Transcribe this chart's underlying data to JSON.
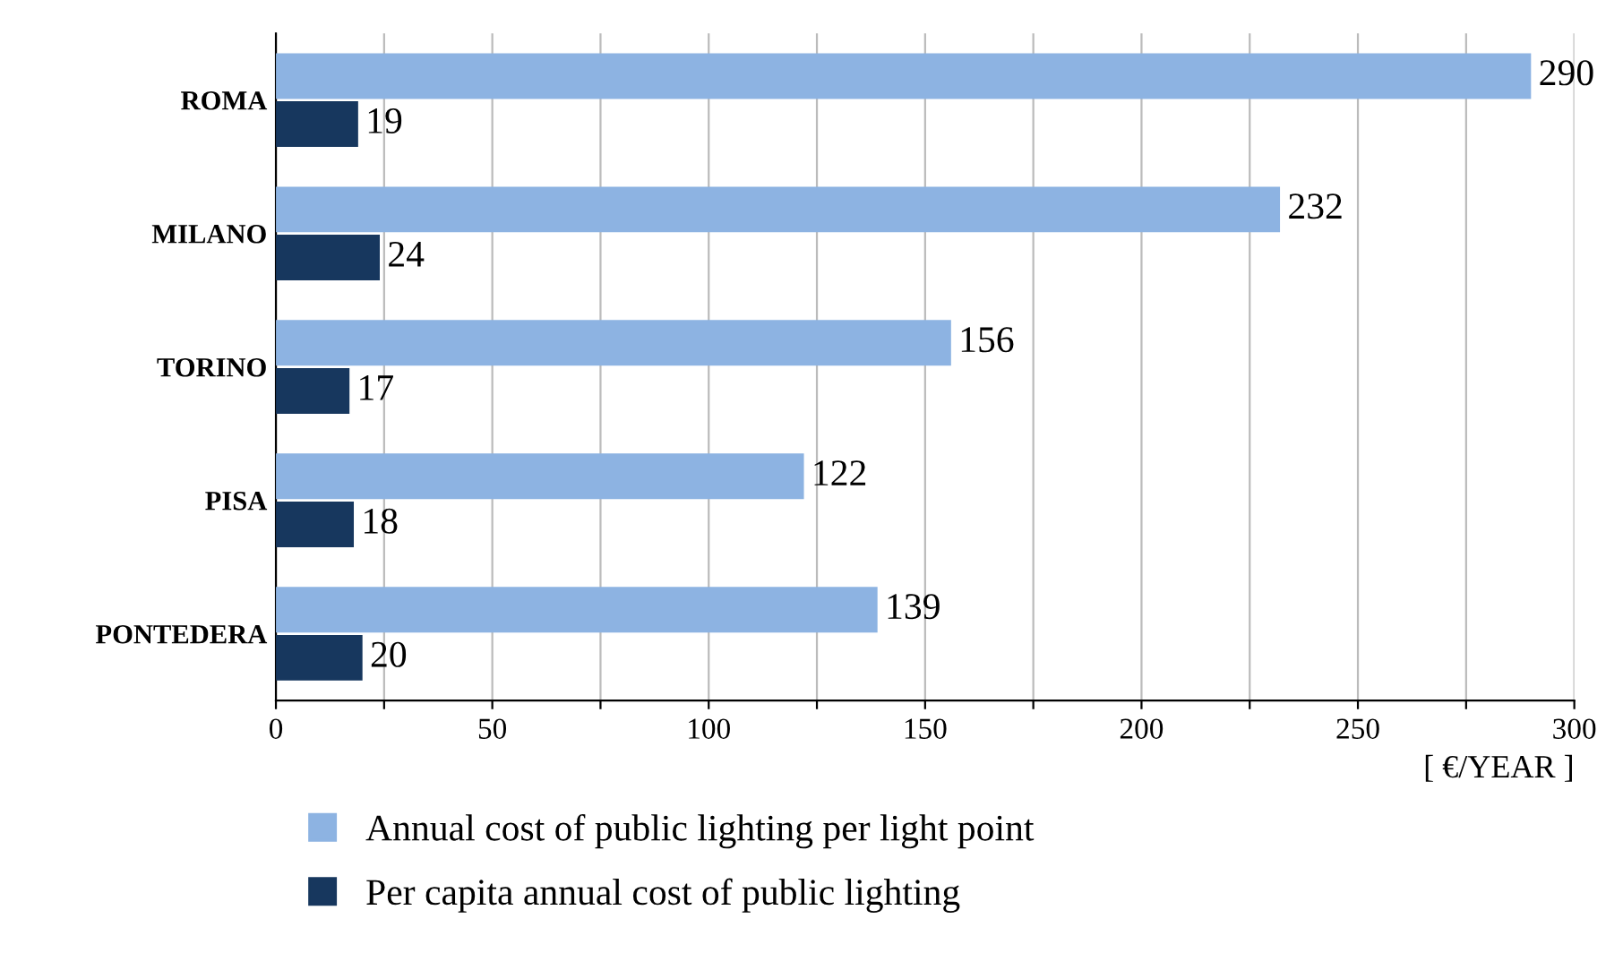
{
  "chart_data": {
    "type": "bar",
    "orientation": "horizontal",
    "categories": [
      "ROMA",
      "MILANO",
      "TORINO",
      "PISA",
      "PONTEDERA"
    ],
    "series": [
      {
        "name": "Annual cost of public lighting per light point",
        "color": "#8db3e2",
        "values": [
          290,
          232,
          156,
          122,
          139
        ]
      },
      {
        "name": "Per capita annual cost of public lighting",
        "color": "#17375e",
        "values": [
          19,
          24,
          17,
          18,
          20
        ]
      }
    ],
    "xlim": [
      0,
      300
    ],
    "xticks": [
      0,
      {
        "value": 25,
        "label": null
      },
      50,
      {
        "value": 75,
        "label": null
      },
      100,
      {
        "value": 125,
        "label": null
      },
      150,
      {
        "value": 175,
        "label": null
      },
      200,
      {
        "value": 225,
        "label": null
      },
      250,
      {
        "value": 275,
        "label": null
      },
      300
    ],
    "xlabel": "[ €/YEAR ]",
    "grid": "x",
    "legend": "bottom",
    "data_labels": true
  }
}
